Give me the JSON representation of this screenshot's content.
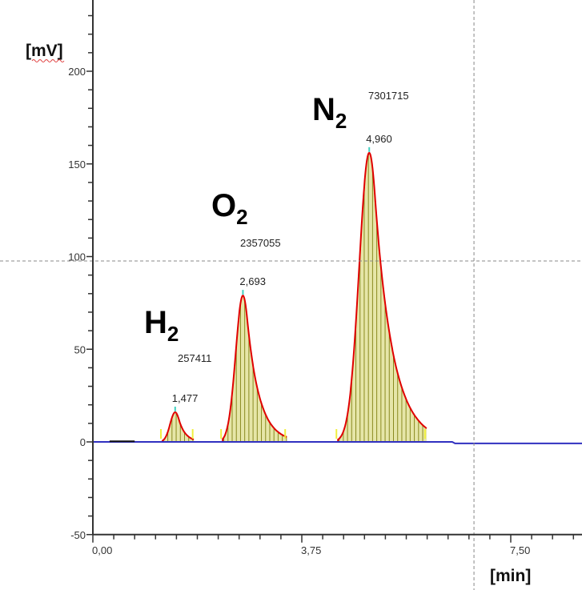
{
  "chart_data": {
    "type": "line",
    "title": "",
    "xlabel": "[min]",
    "ylabel": "[mV]",
    "xlim": [
      0,
      8.78
    ],
    "ylim": [
      -50,
      238
    ],
    "x_ticks": [
      {
        "v": 0,
        "label": "0,00"
      },
      {
        "v": 3.75,
        "label": "3,75"
      },
      {
        "v": 7.5,
        "label": "7,50"
      }
    ],
    "x_minor_step": 0.375,
    "y_ticks": [
      {
        "v": -50,
        "label": "-50"
      },
      {
        "v": 0,
        "label": "0"
      },
      {
        "v": 50,
        "label": "50"
      },
      {
        "v": 100,
        "label": "100"
      },
      {
        "v": 150,
        "label": "150"
      },
      {
        "v": 200,
        "label": "200"
      }
    ],
    "y_minor_step": 10,
    "grid": false,
    "cursor": {
      "x": 6.84,
      "y": 97.6
    },
    "peaks": [
      {
        "name": "H",
        "subscript": "2",
        "rt": 1.477,
        "rt_label": "1,477",
        "height": 16,
        "area_label": "257411",
        "start": 1.25,
        "end": 1.82,
        "sigma_left": 0.09,
        "tail": 0.12
      },
      {
        "name": "O",
        "subscript": "2",
        "rt": 2.693,
        "rt_label": "2,693",
        "height": 79,
        "area_label": "2357055",
        "start": 2.33,
        "end": 3.48,
        "sigma_left": 0.13,
        "tail": 0.22
      },
      {
        "name": "N",
        "subscript": "2",
        "rt": 4.96,
        "rt_label": "4,960",
        "height": 156,
        "area_label": "7301715",
        "start": 4.4,
        "end": 5.99,
        "sigma_left": 0.18,
        "tail": 0.32
      }
    ],
    "colors": {
      "signal": "#e00000",
      "baseline": "#3030c0",
      "fill": "#e6e6a8",
      "hatch": "#8a8a20",
      "marker": "#f0f040",
      "apex": "#40d0c0",
      "cursor": "#888888",
      "axis": "#333333"
    }
  }
}
